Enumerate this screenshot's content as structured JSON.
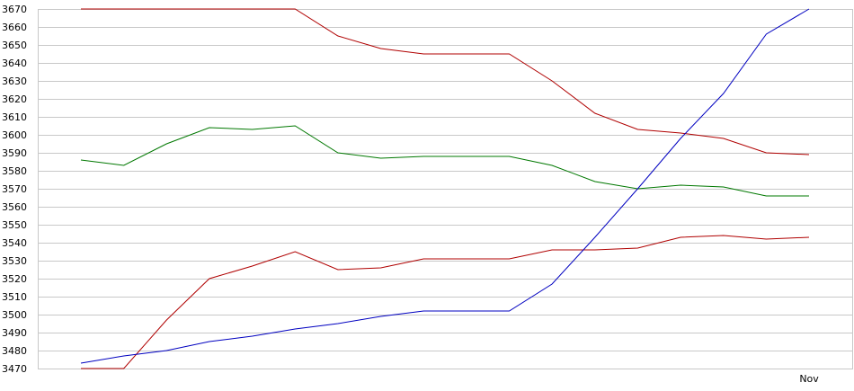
{
  "chart_data": {
    "type": "line",
    "title": "",
    "xlabel": "",
    "ylabel": "",
    "ylim": [
      3470,
      3670
    ],
    "y_ticks": [
      3470,
      3480,
      3490,
      3500,
      3510,
      3520,
      3530,
      3540,
      3550,
      3560,
      3570,
      3580,
      3590,
      3600,
      3610,
      3620,
      3630,
      3640,
      3650,
      3660,
      3670
    ],
    "x_tick_labels": [
      {
        "index": 17,
        "label": "Nov"
      }
    ],
    "grid": true,
    "legend": "none",
    "x": [
      1,
      2,
      3,
      4,
      5,
      6,
      7,
      8,
      9,
      10,
      11,
      12,
      13,
      14,
      15,
      16,
      17,
      18
    ],
    "series": [
      {
        "color": "#b00000",
        "values": [
          3670,
          3670,
          3670,
          3670,
          3670,
          3670,
          3655,
          3648,
          3645,
          3645,
          3645,
          3630,
          3612,
          3603,
          3601,
          3598,
          3590,
          3589
        ]
      },
      {
        "color": "#007800",
        "values": [
          3586,
          3583,
          3595,
          3604,
          3603,
          3605,
          3590,
          3587,
          3588,
          3588,
          3588,
          3583,
          3574,
          3570,
          3572,
          3571,
          3566,
          3566
        ]
      },
      {
        "color": "#b00000",
        "values": [
          3470,
          3470,
          3497,
          3520,
          3527,
          3535,
          3525,
          3526,
          3531,
          3531,
          3531,
          3536,
          3536,
          3537,
          3543,
          3544,
          3542,
          3543
        ]
      },
      {
        "color": "#0000c0",
        "values": [
          3473,
          3477,
          3480,
          3485,
          3488,
          3492,
          3495,
          3499,
          3502,
          3502,
          3502,
          3517,
          3543,
          3570,
          3598,
          3623,
          3656,
          3670
        ]
      }
    ]
  }
}
